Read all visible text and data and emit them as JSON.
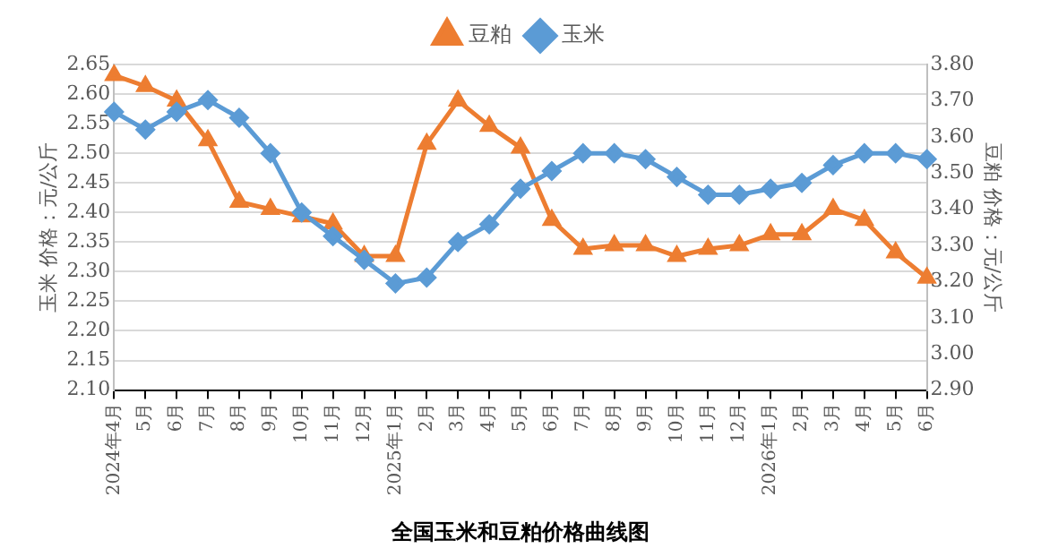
{
  "chart_data": {
    "type": "line",
    "title": "全国玉米和豆粕价格曲线图",
    "ylabel": "玉米 价格：元/公斤",
    "y2label": "豆粕 价格：元/公斤",
    "categories": [
      "2024年4月",
      "5月",
      "6月",
      "7月",
      "8月",
      "9月",
      "10月",
      "11月",
      "12月",
      "2025年1月",
      "2月",
      "3月",
      "4月",
      "5月",
      "6月",
      "7月",
      "8月",
      "9月",
      "10月",
      "11月",
      "12月",
      "2026年1月",
      "2月",
      "3月",
      "4月",
      "5月",
      "6月"
    ],
    "series": [
      {
        "name": "豆粕",
        "color": "#ed7d31",
        "axis": "y2",
        "marker": "triangle",
        "values": [
          3.77,
          3.74,
          3.7,
          3.59,
          3.42,
          3.4,
          3.38,
          3.36,
          3.27,
          3.27,
          3.58,
          3.7,
          3.63,
          3.57,
          3.37,
          3.29,
          3.3,
          3.3,
          3.27,
          3.29,
          3.3,
          3.33,
          3.33,
          3.4,
          3.37,
          3.28,
          3.21
        ]
      },
      {
        "name": "玉米",
        "color": "#5b9bd5",
        "marker": "diamond",
        "values": [
          2.57,
          2.54,
          2.57,
          2.59,
          2.56,
          2.5,
          2.4,
          2.36,
          2.32,
          2.28,
          2.29,
          2.35,
          2.38,
          2.44,
          2.47,
          2.5,
          2.5,
          2.49,
          2.46,
          2.43,
          2.43,
          2.44,
          2.45,
          2.48,
          2.5,
          2.5,
          2.49
        ]
      }
    ],
    "ylim": [
      2.1,
      2.65
    ],
    "yticks": [
      {
        "value": 2.1,
        "label": "2.10"
      },
      {
        "value": 2.15,
        "label": "2.15"
      },
      {
        "value": 2.2,
        "label": "2.20"
      },
      {
        "value": 2.25,
        "label": "2.25"
      },
      {
        "value": 2.3,
        "label": "2.30"
      },
      {
        "value": 2.35,
        "label": "2.35"
      },
      {
        "value": 2.4,
        "label": "2.40"
      },
      {
        "value": 2.45,
        "label": "2.45"
      },
      {
        "value": 2.5,
        "label": "2.50"
      },
      {
        "value": 2.55,
        "label": "2.55"
      },
      {
        "value": 2.6,
        "label": "2.60"
      },
      {
        "value": 2.65,
        "label": "2.65"
      }
    ],
    "y2lim": [
      2.9,
      3.8
    ],
    "y2ticks": [
      {
        "value": 2.9,
        "label": "2.90"
      },
      {
        "value": 3.0,
        "label": "3.00"
      },
      {
        "value": 3.1,
        "label": "3.10"
      },
      {
        "value": 3.2,
        "label": "3.20"
      },
      {
        "value": 3.3,
        "label": "3.30"
      },
      {
        "value": 3.4,
        "label": "3.40"
      },
      {
        "value": 3.5,
        "label": "3.50"
      },
      {
        "value": 3.6,
        "label": "3.60"
      },
      {
        "value": 3.7,
        "label": "3.70"
      },
      {
        "value": 3.8,
        "label": "3.80"
      }
    ],
    "grid": "y",
    "legend": "top",
    "line_style": "solid"
  }
}
